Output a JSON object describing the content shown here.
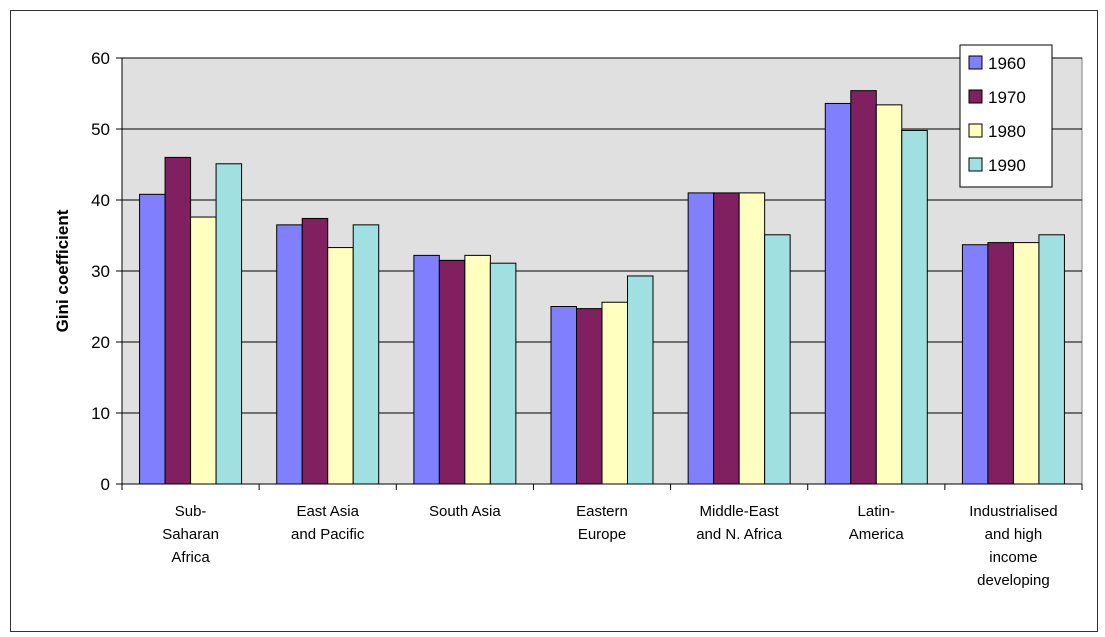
{
  "chart_data": {
    "type": "bar",
    "title": "",
    "xlabel": "",
    "ylabel": "Gini coefficient",
    "ylim": [
      0,
      60
    ],
    "yticks": [
      0,
      10,
      20,
      30,
      40,
      50,
      60
    ],
    "grid": true,
    "legend_position": "top-right",
    "categories": [
      [
        "Sub-",
        "Saharan",
        "Africa"
      ],
      [
        "East Asia",
        "and Pacific"
      ],
      [
        "South Asia"
      ],
      [
        "Eastern",
        "Europe"
      ],
      [
        "Middle-East",
        "and N. Africa"
      ],
      [
        "Latin-",
        "America"
      ],
      [
        "Industrialised",
        "and high",
        "income",
        "developing"
      ]
    ],
    "series": [
      {
        "name": "1960",
        "color": "#8080ff",
        "values": [
          40.8,
          36.5,
          32.2,
          25.0,
          41.0,
          53.6,
          33.7
        ]
      },
      {
        "name": "1970",
        "color": "#802060",
        "values": [
          46.0,
          37.4,
          31.5,
          24.7,
          41.0,
          55.4,
          34.0
        ]
      },
      {
        "name": "1980",
        "color": "#ffffc0",
        "values": [
          37.6,
          33.3,
          32.2,
          25.6,
          41.0,
          53.4,
          34.0
        ]
      },
      {
        "name": "1990",
        "color": "#a0e0e0",
        "values": [
          45.1,
          36.5,
          31.1,
          29.3,
          35.1,
          49.8,
          35.1
        ]
      }
    ]
  }
}
